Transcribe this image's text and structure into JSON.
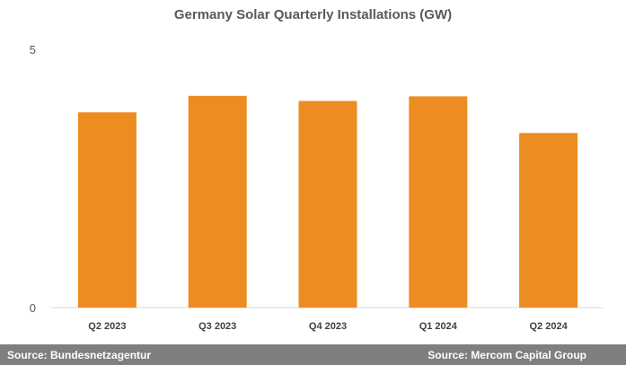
{
  "chart_data": {
    "type": "bar",
    "title": "Germany Solar Quarterly Installations (GW)",
    "categories": [
      "Q2 2023",
      "Q3 2023",
      "Q4 2023",
      "Q1 2024",
      "Q2 2024"
    ],
    "values": [
      3.78,
      4.1,
      4.0,
      4.09,
      3.38
    ],
    "ylim": [
      0,
      5
    ],
    "yticks": [
      "0",
      "5"
    ],
    "grid": false,
    "bar_color": "#ed8c21"
  },
  "footer": {
    "source_left": "Source: Bundesnetzagentur",
    "source_right": "Source: Mercom Capital Group",
    "background": "#7f7f7f"
  }
}
